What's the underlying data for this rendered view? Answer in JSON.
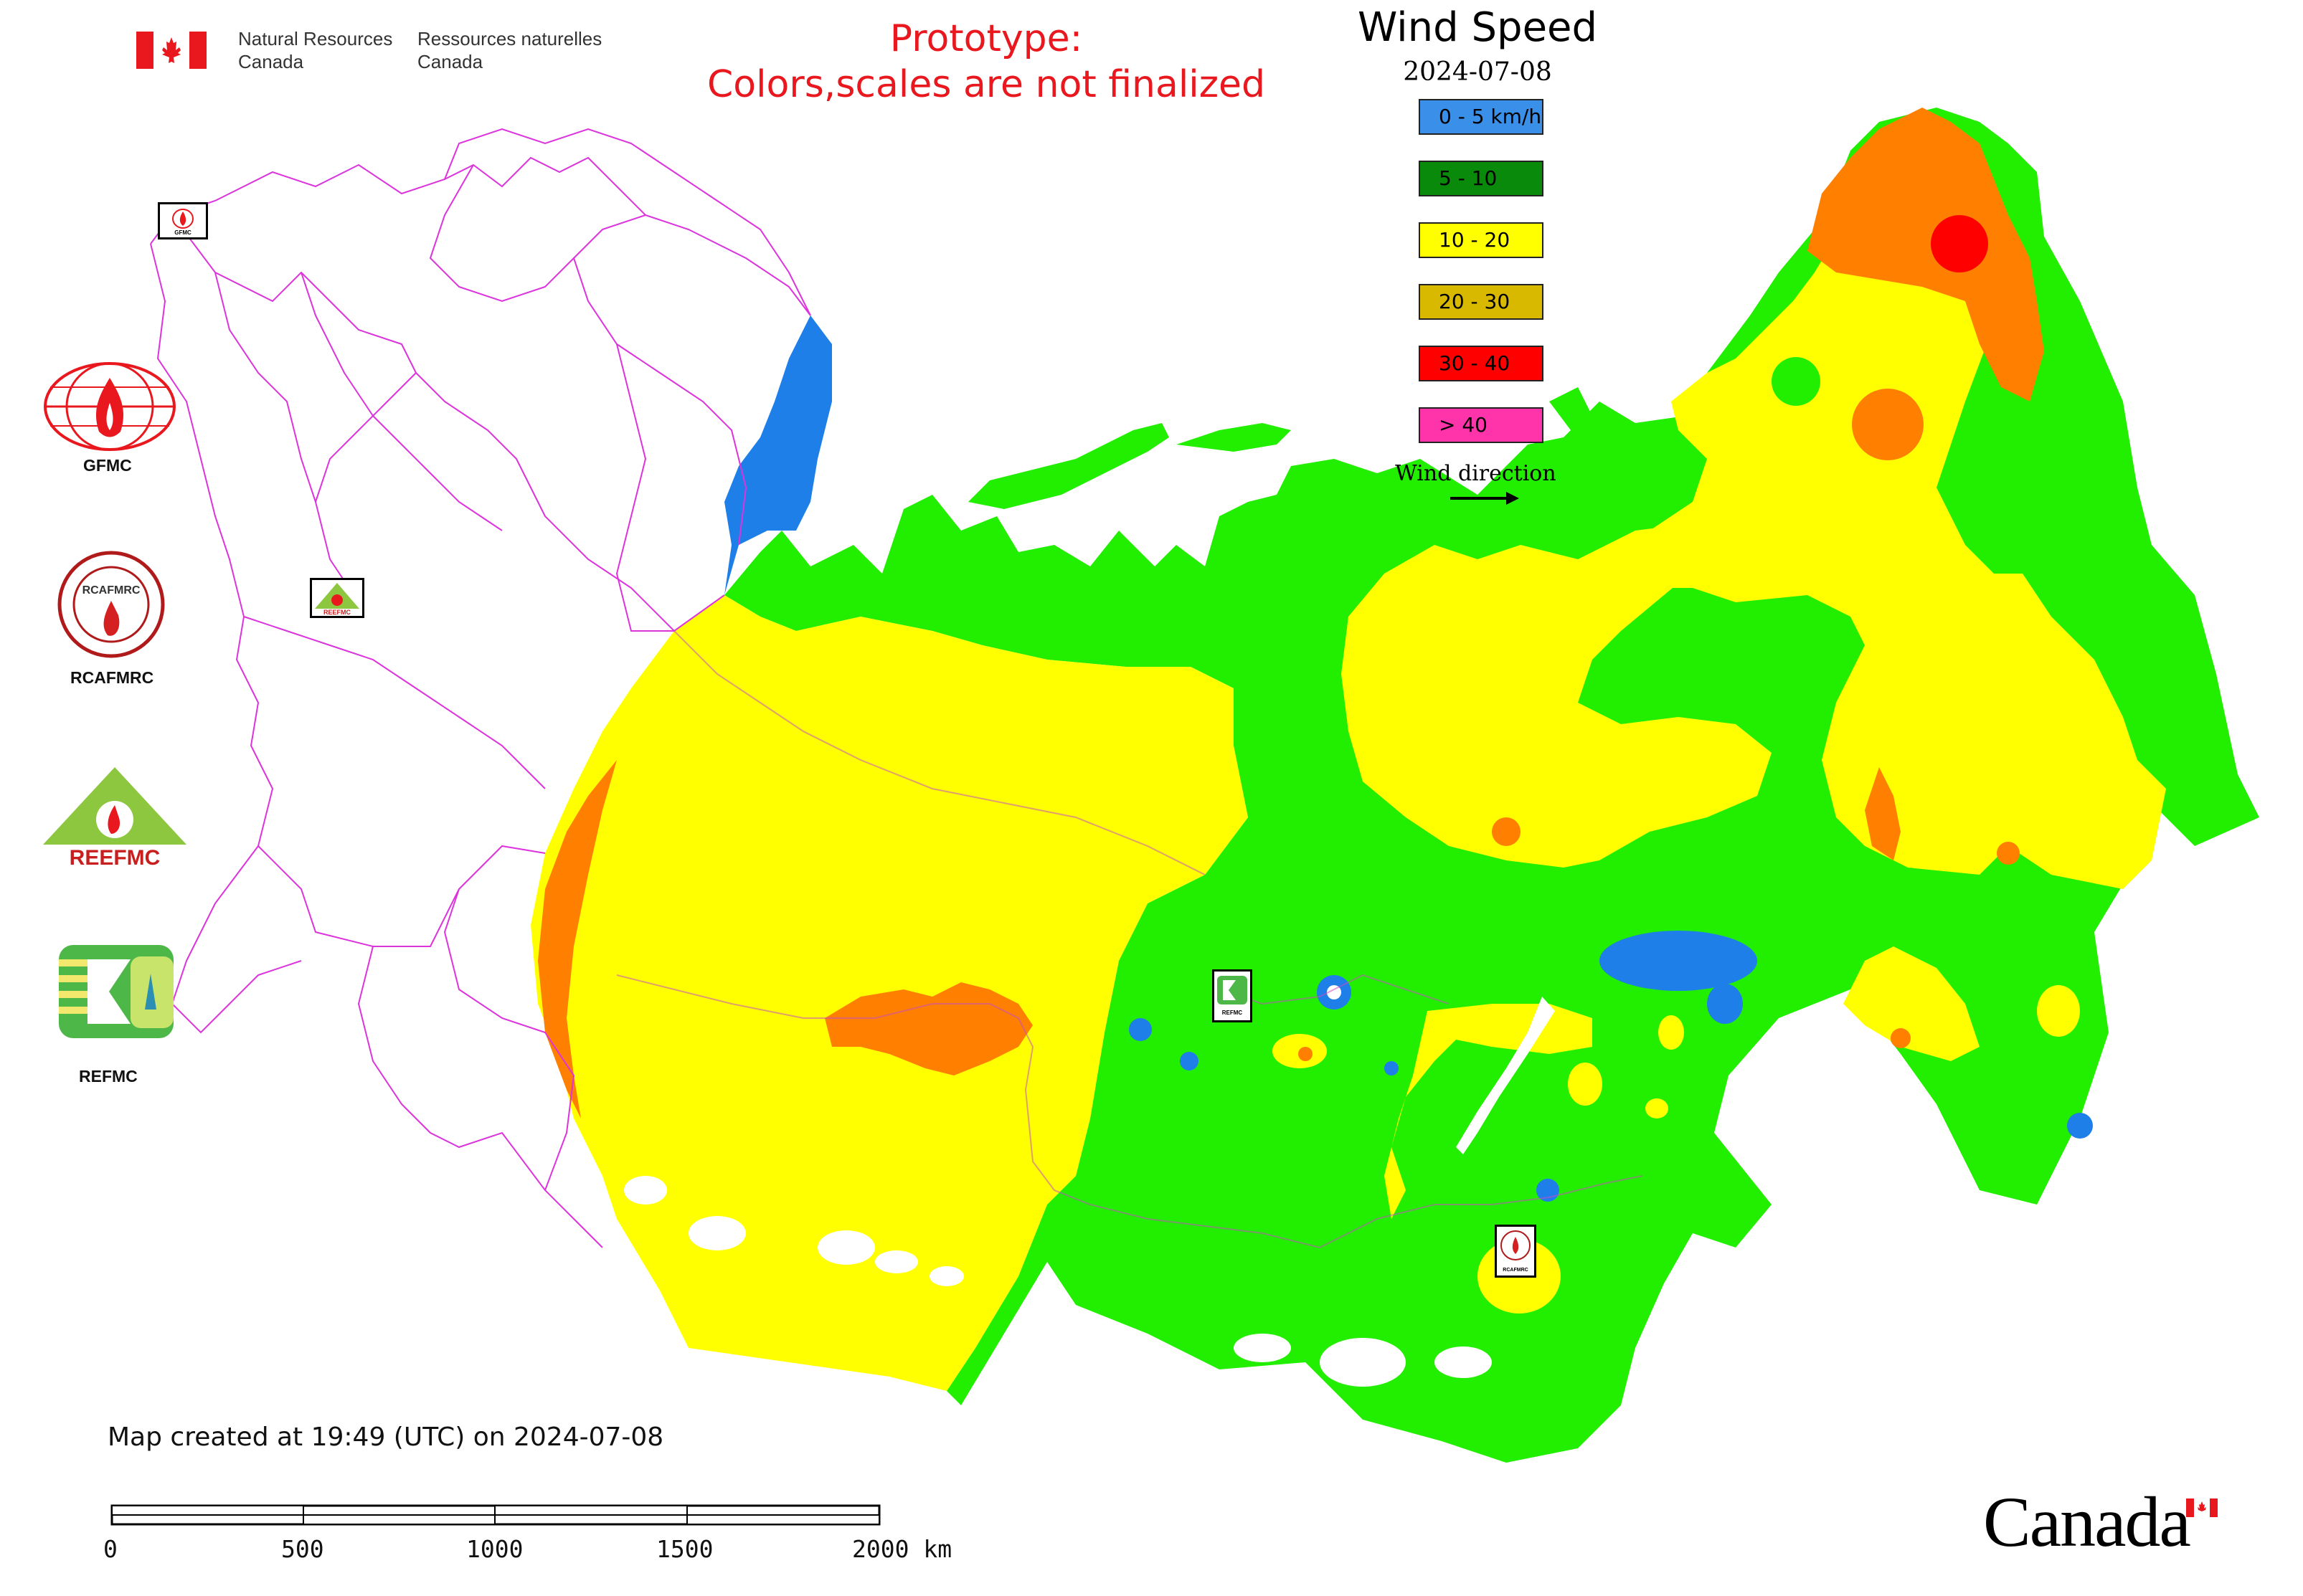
{
  "header": {
    "nrcan_en": [
      "Natural Resources",
      "Canada"
    ],
    "nrcan_fr": [
      "Ressources naturelles",
      "Canada"
    ],
    "prototype_lines": [
      "Prototype:",
      "Colors,scales are not finalized"
    ]
  },
  "legend": {
    "title": "Wind Speed",
    "date": "2024-07-08",
    "items": [
      {
        "label": "0 - 5 km/h",
        "color": "#3a8fe8"
      },
      {
        "label": "5 - 10",
        "color": "#0a8a0a"
      },
      {
        "label": "10 - 20",
        "color": "#ffff00"
      },
      {
        "label": "20 - 30",
        "color": "#d9b800"
      },
      {
        "label": "30 - 40",
        "color": "#ff0000"
      },
      {
        "label": "> 40",
        "color": "#ff33aa"
      }
    ],
    "wind_direction_label": "Wind direction"
  },
  "map_colors": {
    "calm": "#1e7fe8",
    "low": "#22ee00",
    "moderate": "#ffff00",
    "strong": "#ff7f00",
    "very_strong": "#ff0000",
    "boundary": "#dd33dd"
  },
  "organizations": [
    {
      "name": "GFMC",
      "icon": "gfmc-logo-icon",
      "logo_text": "GFMC"
    },
    {
      "name": "RCAFMRC",
      "icon": "rcafmrc-logo-icon",
      "logo_text": "RCAFMRC"
    },
    {
      "name": "REEFMC",
      "icon": "reefmc-logo-icon",
      "logo_text": "REEFMC"
    },
    {
      "name": "REFMC",
      "icon": "refmc-logo-icon"
    }
  ],
  "map_markers": [
    {
      "icon": "gfmc-marker-icon",
      "text": "GFMC"
    },
    {
      "icon": "reefmc-marker-icon",
      "text": "REEFMC"
    },
    {
      "icon": "refmc-marker-icon",
      "text": "REFMC"
    },
    {
      "icon": "rcafmrc-marker-icon",
      "text": "RCAFMRC"
    }
  ],
  "footer": {
    "created_text": "Map created at 19:49 (UTC) on 2024-07-08",
    "scale_labels": [
      "0",
      "500",
      "1000",
      "1500",
      "2000 km"
    ],
    "wordmark": "Canada"
  }
}
